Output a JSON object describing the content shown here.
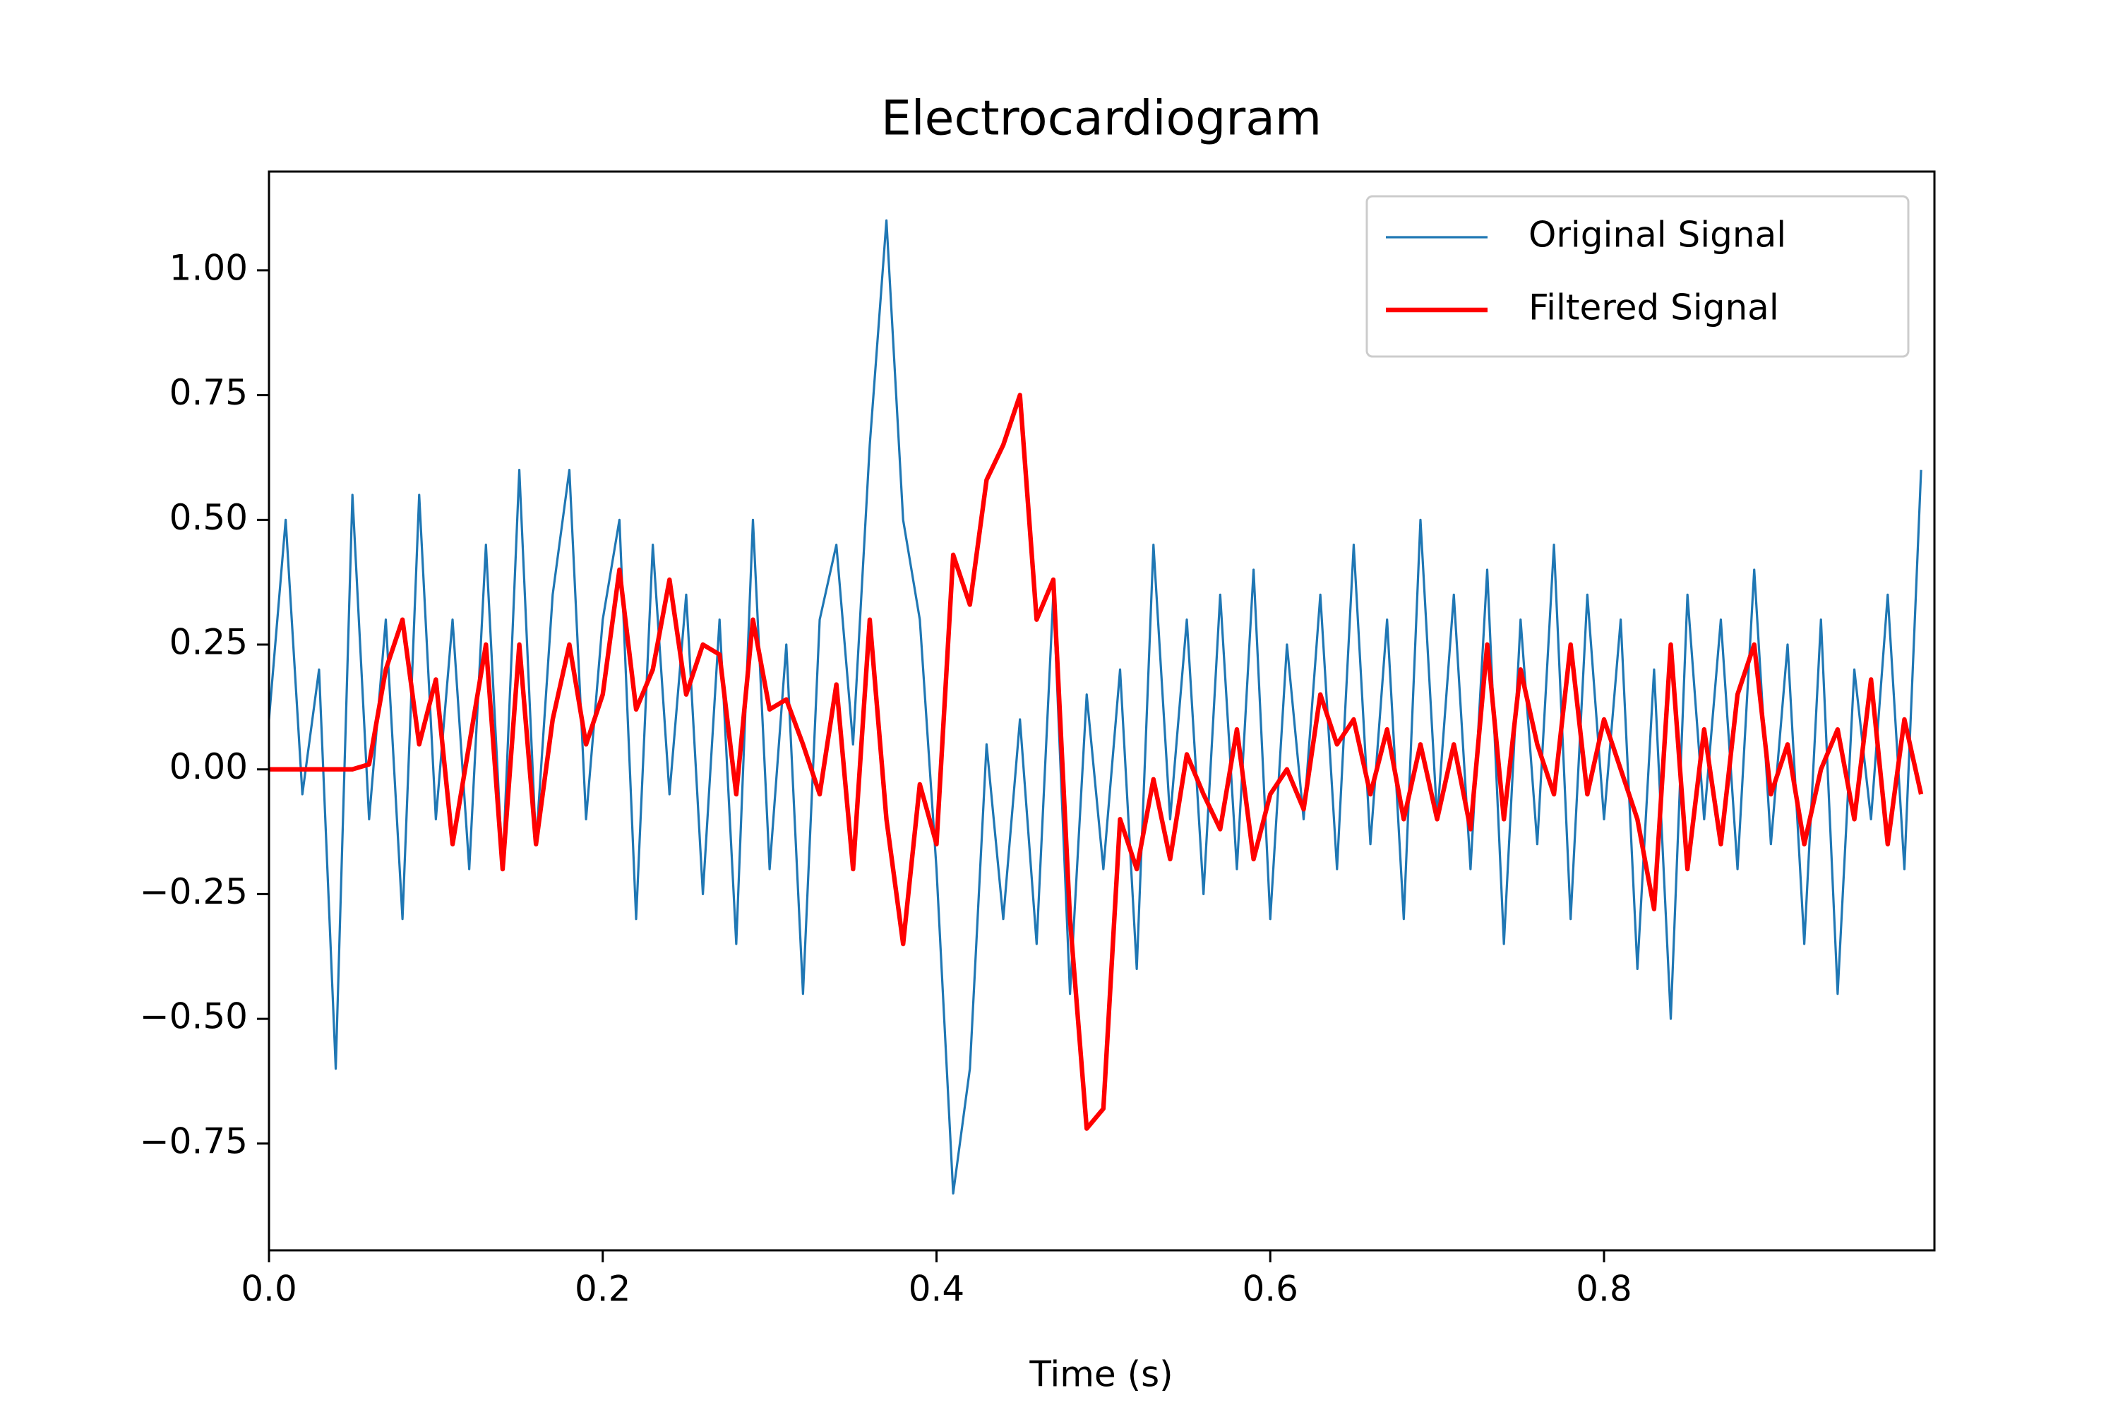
{
  "chart_data": {
    "type": "line",
    "title": "Electrocardiogram",
    "x_label": "Time (s)",
    "x": [
      0.0,
      0.01,
      0.02,
      0.03,
      0.04,
      0.05,
      0.06,
      0.07,
      0.08,
      0.09,
      0.1,
      0.11,
      0.12,
      0.13,
      0.14,
      0.15,
      0.16,
      0.17,
      0.18,
      0.19,
      0.2,
      0.21,
      0.22,
      0.23,
      0.24,
      0.25,
      0.26,
      0.27,
      0.28,
      0.29,
      0.3,
      0.31,
      0.32,
      0.33,
      0.34,
      0.35,
      0.36,
      0.37,
      0.38,
      0.39,
      0.4,
      0.41,
      0.42,
      0.43,
      0.44,
      0.45,
      0.46,
      0.47,
      0.48,
      0.49,
      0.5,
      0.51,
      0.52,
      0.53,
      0.54,
      0.55,
      0.56,
      0.57,
      0.58,
      0.59,
      0.6,
      0.61,
      0.62,
      0.63,
      0.64,
      0.65,
      0.66,
      0.67,
      0.68,
      0.69,
      0.7,
      0.71,
      0.72,
      0.73,
      0.74,
      0.75,
      0.76,
      0.77,
      0.78,
      0.79,
      0.8,
      0.81,
      0.82,
      0.83,
      0.84,
      0.85,
      0.86,
      0.87,
      0.88,
      0.89,
      0.9,
      0.91,
      0.92,
      0.93,
      0.94,
      0.95,
      0.96,
      0.97,
      0.98,
      0.99
    ],
    "series": [
      {
        "name": "Original Signal",
        "color": "#1f77b4",
        "width": 1,
        "values": [
          0.1,
          0.5,
          -0.05,
          0.2,
          -0.6,
          0.55,
          -0.1,
          0.3,
          -0.3,
          0.55,
          -0.1,
          0.3,
          -0.2,
          0.45,
          -0.2,
          0.6,
          -0.15,
          0.35,
          0.6,
          -0.1,
          0.3,
          0.5,
          -0.3,
          0.45,
          -0.05,
          0.35,
          -0.25,
          0.3,
          -0.35,
          0.5,
          -0.2,
          0.25,
          -0.45,
          0.3,
          0.45,
          0.05,
          0.65,
          1.1,
          0.5,
          0.3,
          -0.2,
          -0.85,
          -0.6,
          0.05,
          -0.3,
          0.1,
          -0.35,
          0.35,
          -0.45,
          0.15,
          -0.2,
          0.2,
          -0.4,
          0.45,
          -0.1,
          0.3,
          -0.25,
          0.35,
          -0.2,
          0.4,
          -0.3,
          0.25,
          -0.1,
          0.35,
          -0.2,
          0.45,
          -0.15,
          0.3,
          -0.3,
          0.5,
          -0.1,
          0.35,
          -0.2,
          0.4,
          -0.35,
          0.3,
          -0.15,
          0.45,
          -0.3,
          0.35,
          -0.1,
          0.3,
          -0.4,
          0.2,
          -0.5,
          0.35,
          -0.1,
          0.3,
          -0.2,
          0.4,
          -0.15,
          0.25,
          -0.35,
          0.3,
          -0.45,
          0.2,
          -0.1,
          0.35,
          -0.2,
          0.6
        ]
      },
      {
        "name": "Filtered Signal",
        "color": "#ff0000",
        "width": 2,
        "values": [
          0,
          0,
          0,
          0,
          0,
          0,
          0.01,
          0.2,
          0.3,
          0.05,
          0.18,
          -0.15,
          0.05,
          0.25,
          -0.2,
          0.25,
          -0.15,
          0.1,
          0.25,
          0.05,
          0.15,
          0.4,
          0.12,
          0.2,
          0.38,
          0.15,
          0.25,
          0.23,
          -0.05,
          0.3,
          0.12,
          0.14,
          0.05,
          -0.05,
          0.17,
          -0.2,
          0.3,
          -0.1,
          -0.35,
          -0.03,
          -0.15,
          0.43,
          0.33,
          0.58,
          0.65,
          0.75,
          0.3,
          0.38,
          -0.3,
          -0.72,
          -0.68,
          -0.1,
          -0.2,
          -0.02,
          -0.18,
          0.03,
          -0.05,
          -0.12,
          0.08,
          -0.18,
          -0.05,
          0,
          -0.08,
          0.15,
          0.05,
          0.1,
          -0.05,
          0.08,
          -0.1,
          0.05,
          -0.1,
          0.05,
          -0.12,
          0.25,
          -0.1,
          0.2,
          0.05,
          -0.05,
          0.25,
          -0.05,
          0.1,
          0,
          -0.1,
          -0.28,
          0.25,
          -0.2,
          0.08,
          -0.15,
          0.15,
          0.25,
          -0.05,
          0.05,
          -0.15,
          0,
          0.08,
          -0.1,
          0.18,
          -0.15,
          0.1,
          -0.05
        ]
      }
    ],
    "xlim": [
      0,
      0.998
    ],
    "ylim": [
      -0.964,
      1.198
    ],
    "xticks": [
      {
        "value": 0,
        "label": "0.0"
      },
      0.2,
      0.4,
      0.6,
      0.8
    ],
    "yticks": [
      {
        "value": -0.75,
        "label": "−0.75"
      },
      {
        "value": -0.5,
        "label": "−0.50"
      },
      {
        "value": -0.25,
        "label": "−0.25"
      },
      {
        "value": 0,
        "label": "0.00"
      },
      0.25,
      {
        "value": 0.5,
        "label": "0.50"
      },
      0.75,
      {
        "value": 1,
        "label": "1.00"
      }
    ],
    "legend": "upper right"
  }
}
